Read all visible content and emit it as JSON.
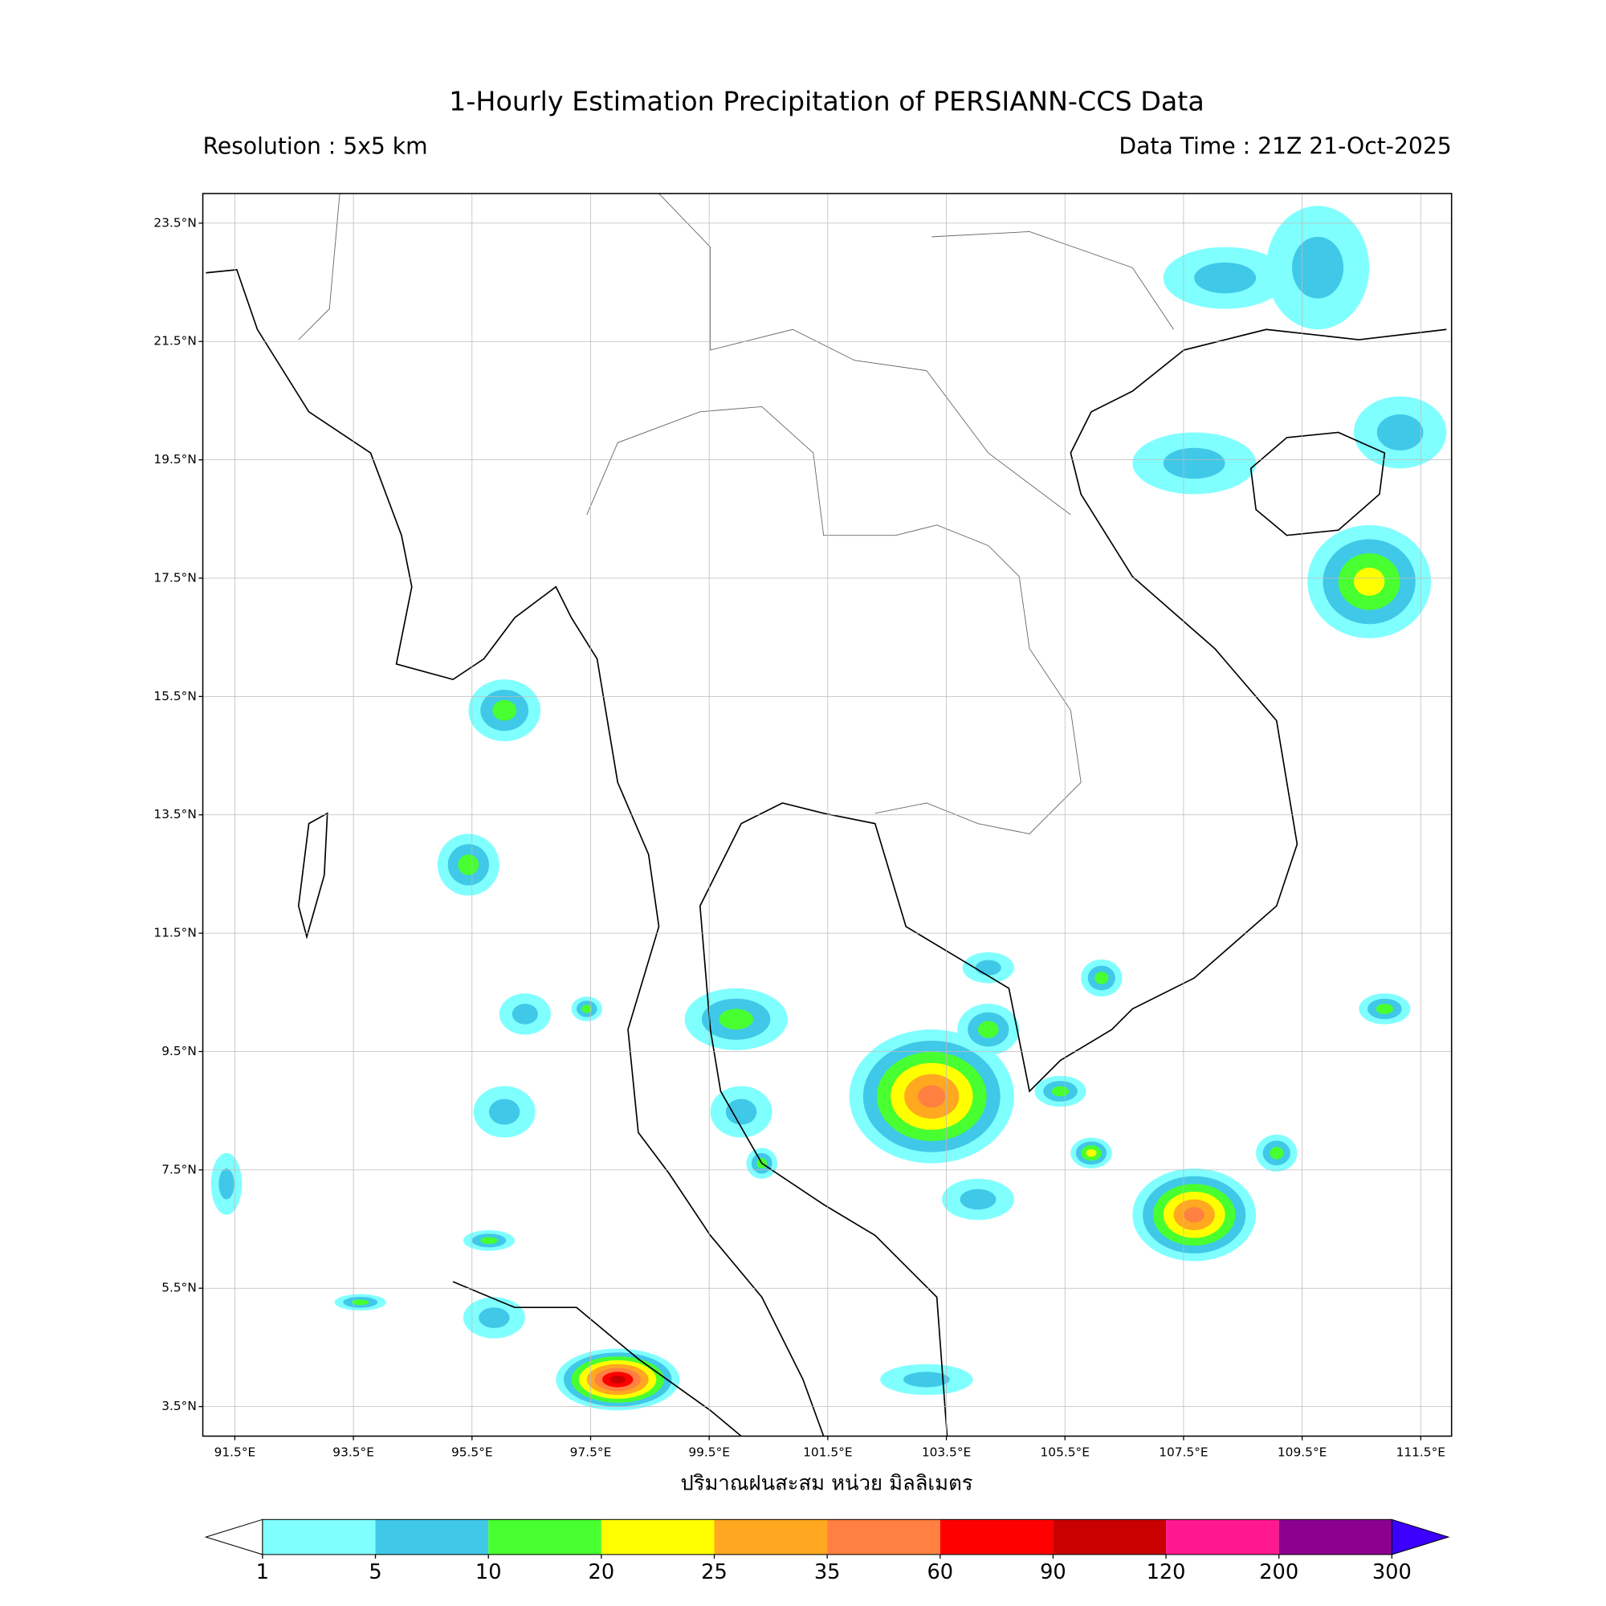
{
  "chart_data": {
    "type": "map",
    "title": "1-Hourly Estimation Precipitation of PERSIANN-CCS Data",
    "subtitle_left": "Resolution : 5x5 km",
    "subtitle_right": "Data Time : 21Z 21-Oct-2025",
    "xlabel": "ปริมาณฝนสะสม หน่วย มิลลิเมตร",
    "xlim": [
      90.96,
      112.02
    ],
    "ylim": [
      3.0,
      24.0
    ],
    "grid": true,
    "xticks": [
      {
        "value": 91.5,
        "label": "91.5°E"
      },
      {
        "value": 93.5,
        "label": "93.5°E"
      },
      {
        "value": 95.5,
        "label": "95.5°E"
      },
      {
        "value": 97.5,
        "label": "97.5°E"
      },
      {
        "value": 99.5,
        "label": "99.5°E"
      },
      {
        "value": 101.5,
        "label": "101.5°E"
      },
      {
        "value": 103.5,
        "label": "103.5°E"
      },
      {
        "value": 105.5,
        "label": "105.5°E"
      },
      {
        "value": 107.5,
        "label": "107.5°E"
      },
      {
        "value": 109.5,
        "label": "109.5°E"
      },
      {
        "value": 111.5,
        "label": "111.5°E"
      }
    ],
    "yticks": [
      {
        "value": 23.5,
        "label": "23.5°N"
      },
      {
        "value": 21.5,
        "label": "21.5°N"
      },
      {
        "value": 19.5,
        "label": "19.5°N"
      },
      {
        "value": 17.5,
        "label": "17.5°N"
      },
      {
        "value": 15.5,
        "label": "15.5°N"
      },
      {
        "value": 13.5,
        "label": "13.5°N"
      },
      {
        "value": 11.5,
        "label": "11.5°N"
      },
      {
        "value": 9.5,
        "label": "9.5°N"
      },
      {
        "value": 7.5,
        "label": "7.5°N"
      },
      {
        "value": 5.5,
        "label": "5.5°N"
      },
      {
        "value": 3.5,
        "label": "3.5°N"
      }
    ],
    "colorbar": {
      "levels": [
        1,
        5,
        10,
        20,
        25,
        35,
        60,
        90,
        120,
        200,
        300
      ],
      "colors": [
        "#80ffff",
        "#40c8e8",
        "#48ff30",
        "#ffff00",
        "#ffa820",
        "#ff8040",
        "#ff0000",
        "#c80000",
        "#ff1890",
        "#8c0090"
      ],
      "under_color": "#ffffff",
      "over_color": "#3c00ff"
    }
  }
}
